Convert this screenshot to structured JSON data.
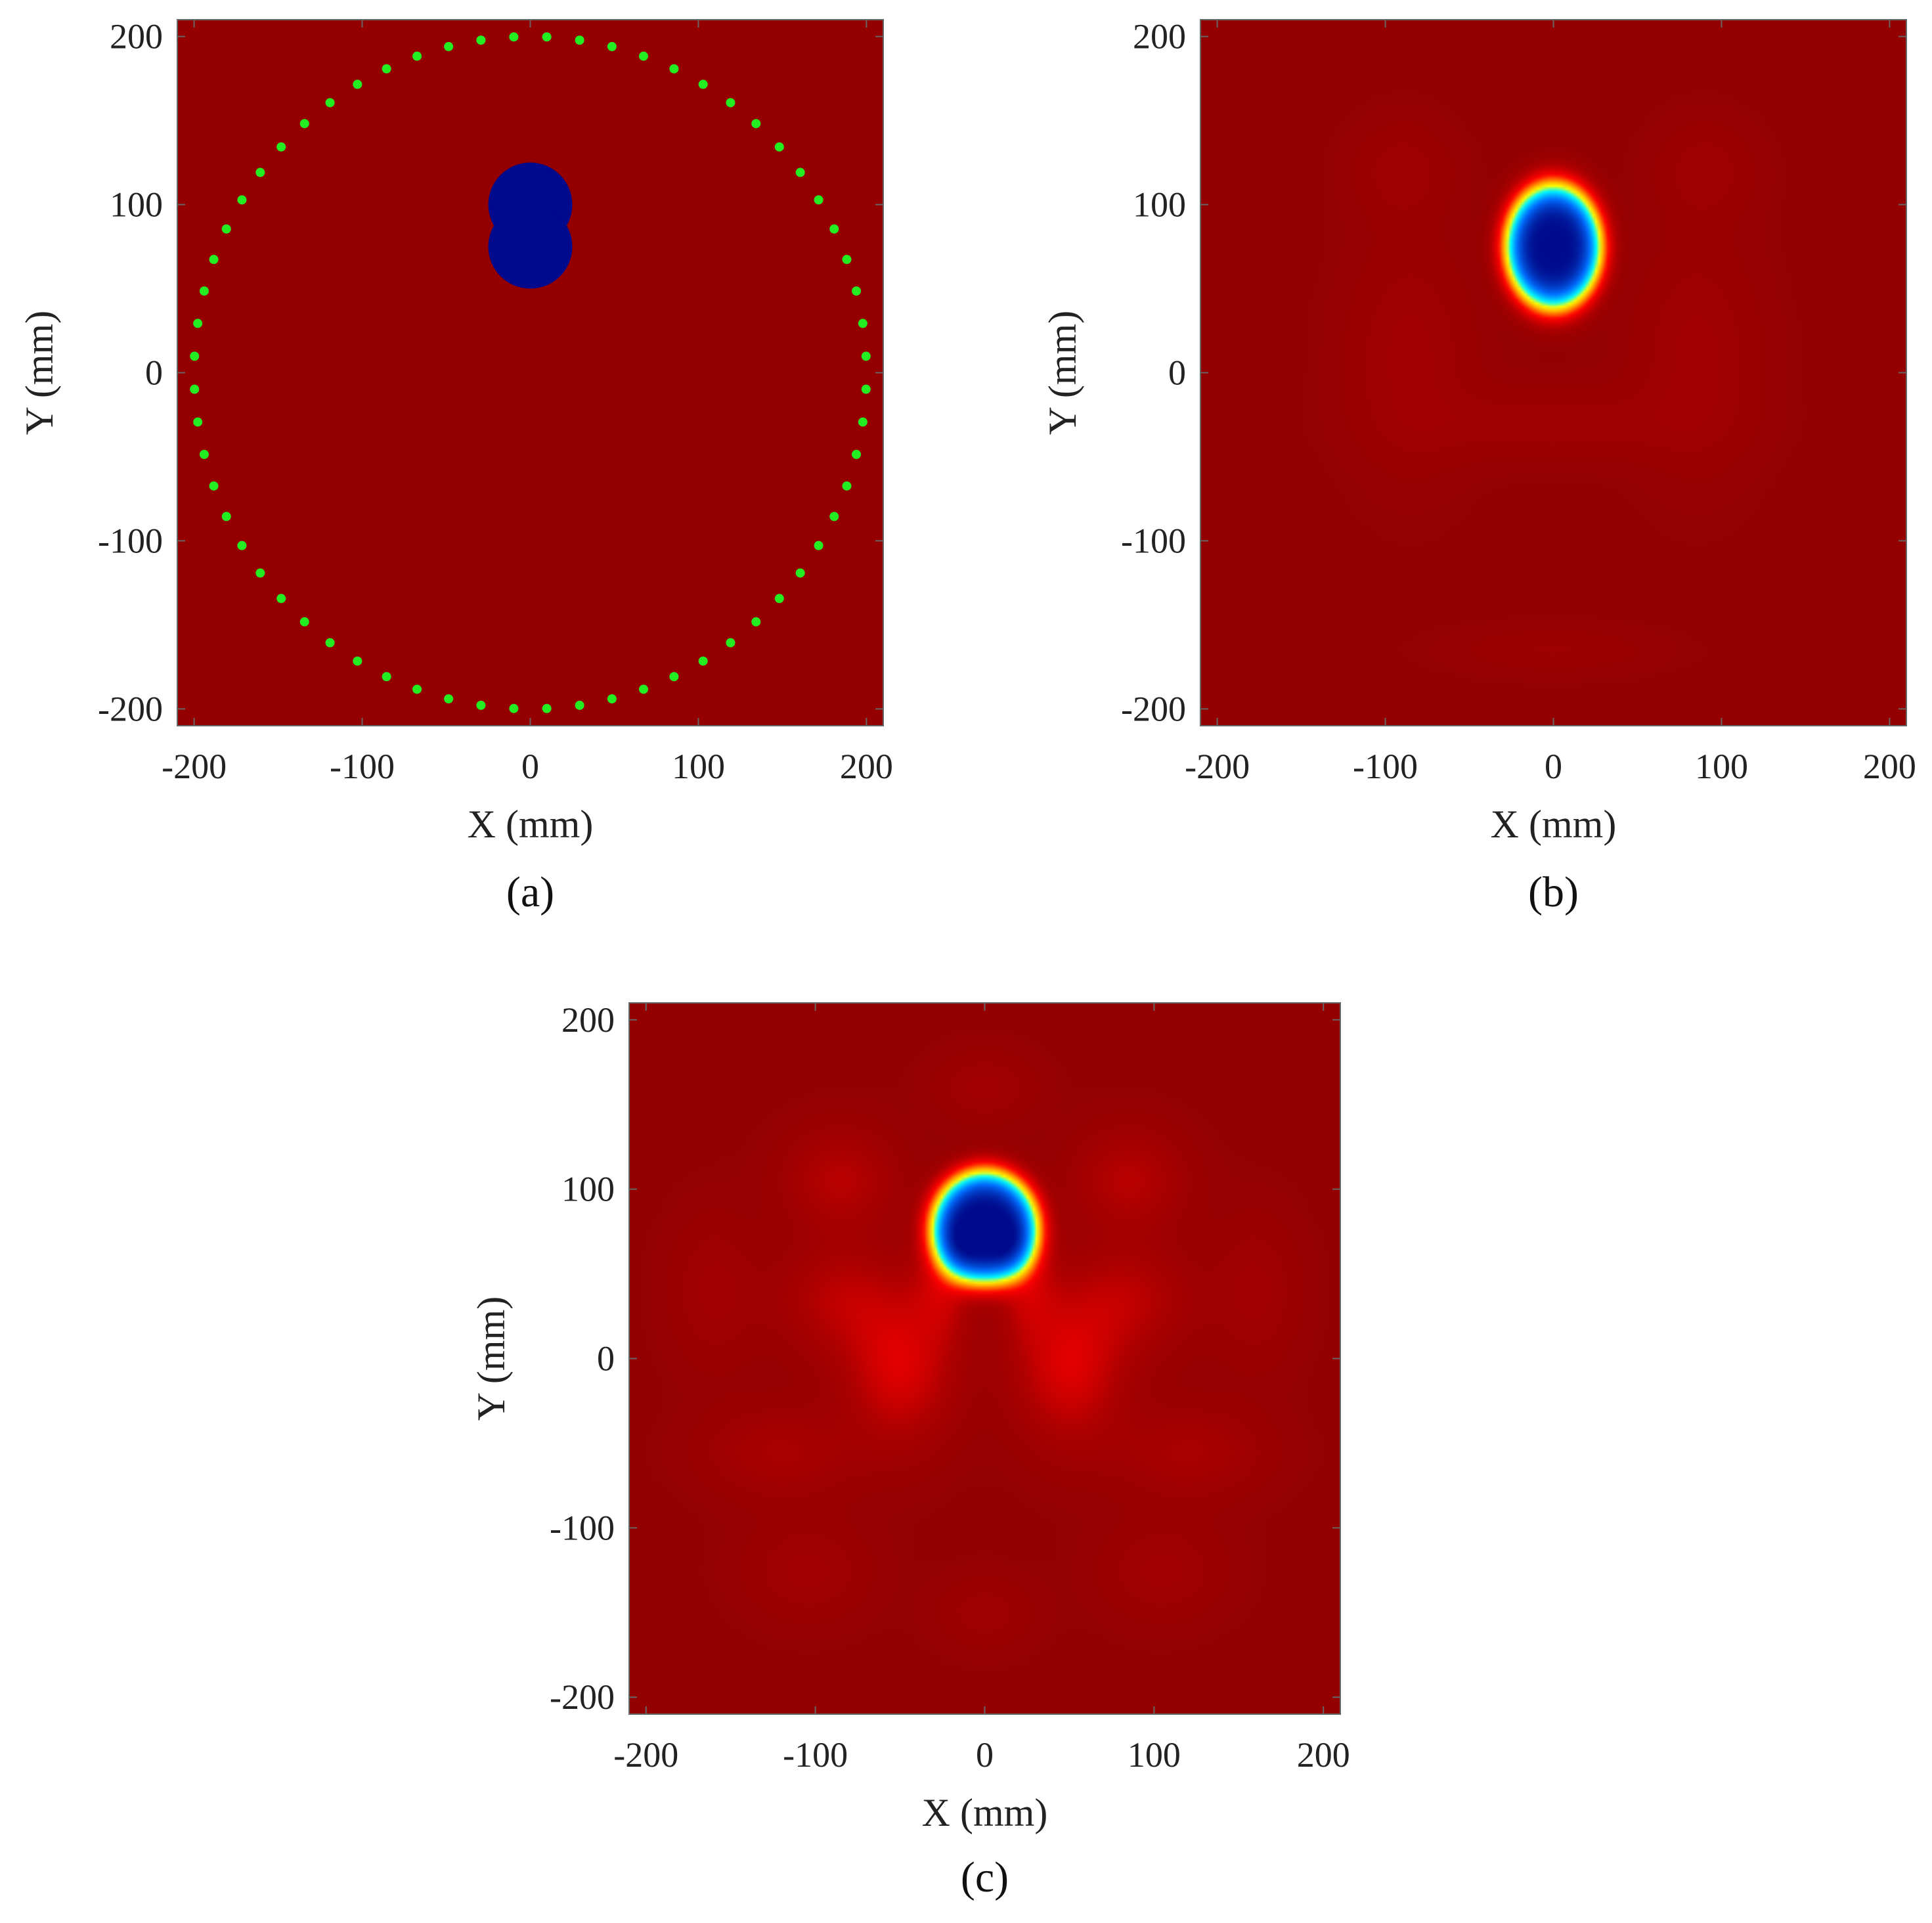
{
  "figure": {
    "colors": {
      "background": "#940000",
      "inclusion": "#000a8c",
      "antenna": "#22ee22",
      "frame": "#666666"
    }
  },
  "chart_data": [
    {
      "panel": "(a)",
      "type": "heatmap",
      "xlabel": "X (mm)",
      "ylabel": "Y (mm)",
      "xlim": [
        -210,
        210
      ],
      "ylim": [
        -210,
        210
      ],
      "xticks": [
        -200,
        -100,
        0,
        100,
        200
      ],
      "yticks": [
        -200,
        -100,
        0,
        100,
        200
      ],
      "xtick_labels": [
        "-200",
        "-100",
        "0",
        "100",
        "200"
      ],
      "ytick_labels": [
        "-200",
        "-100",
        "0",
        "100",
        "200"
      ],
      "background_value": "uniform (dark red)",
      "inclusion": {
        "shape": "two overlapping disks",
        "circles": [
          {
            "cx": 0,
            "cy": 100,
            "r": 25
          },
          {
            "cx": 0,
            "cy": 75,
            "r": 25
          }
        ],
        "color": "#000a8c"
      },
      "antennas": {
        "count": 64,
        "radius": 200,
        "start_angle_deg": 2.8125,
        "color": "#22ee22"
      }
    },
    {
      "panel": "(b)",
      "type": "heatmap",
      "xlabel": "X (mm)",
      "ylabel": "Y (mm)",
      "xlim": [
        -210,
        210
      ],
      "ylim": [
        -210,
        210
      ],
      "xticks": [
        -200,
        -100,
        0,
        100,
        200
      ],
      "yticks": [
        -200,
        -100,
        0,
        100,
        200
      ],
      "xtick_labels": [
        "-200",
        "-100",
        "0",
        "100",
        "200"
      ],
      "ytick_labels": [
        "-200",
        "-100",
        "0",
        "100",
        "200"
      ],
      "reconstruction_peak": {
        "x": 0,
        "y": 75,
        "sx": 26,
        "sy": 34
      },
      "artifacts": [
        {
          "x": -85,
          "y": 10,
          "sx": 25,
          "sy": 45,
          "amp": 0.05
        },
        {
          "x": 85,
          "y": 10,
          "sx": 25,
          "sy": 45,
          "amp": 0.05
        },
        {
          "x": 0,
          "y": -30,
          "sx": 55,
          "sy": 15,
          "amp": 0.04
        },
        {
          "x": -90,
          "y": 120,
          "sx": 20,
          "sy": 20,
          "amp": 0.04
        },
        {
          "x": 90,
          "y": 120,
          "sx": 20,
          "sy": 20,
          "amp": 0.04
        },
        {
          "x": 0,
          "y": -165,
          "sx": 40,
          "sy": 10,
          "amp": 0.03
        }
      ]
    },
    {
      "panel": "(c)",
      "type": "heatmap",
      "xlabel": "X (mm)",
      "ylabel": "Y (mm)",
      "xlim": [
        -210,
        210
      ],
      "ylim": [
        -210,
        210
      ],
      "xticks": [
        -200,
        -100,
        0,
        100,
        200
      ],
      "yticks": [
        -200,
        -100,
        0,
        100,
        200
      ],
      "xtick_labels": [
        "-200",
        "-100",
        "0",
        "100",
        "200"
      ],
      "ytick_labels": [
        "-200",
        "-100",
        "0",
        "100",
        "200"
      ],
      "reconstruction_peak": {
        "x": 0,
        "y": 78,
        "sx": 28,
        "sy": 30
      },
      "artifacts": [
        {
          "x": -85,
          "y": 105,
          "sx": 22,
          "sy": 20,
          "amp": 0.12
        },
        {
          "x": 85,
          "y": 105,
          "sx": 22,
          "sy": 20,
          "amp": 0.12
        },
        {
          "x": -85,
          "y": 35,
          "sx": 25,
          "sy": 22,
          "amp": 0.12
        },
        {
          "x": 85,
          "y": 35,
          "sx": 25,
          "sy": 22,
          "amp": 0.12
        },
        {
          "x": -50,
          "y": -5,
          "sx": 22,
          "sy": 30,
          "amp": 0.2
        },
        {
          "x": 50,
          "y": -5,
          "sx": 22,
          "sy": 30,
          "amp": 0.2
        },
        {
          "x": -25,
          "y": 45,
          "sx": 12,
          "sy": 22,
          "amp": 0.15
        },
        {
          "x": 25,
          "y": 45,
          "sx": 12,
          "sy": 22,
          "amp": 0.15
        },
        {
          "x": -120,
          "y": -55,
          "sx": 30,
          "sy": 18,
          "amp": 0.08
        },
        {
          "x": 120,
          "y": -55,
          "sx": 30,
          "sy": 18,
          "amp": 0.08
        },
        {
          "x": -160,
          "y": 40,
          "sx": 18,
          "sy": 30,
          "amp": 0.05
        },
        {
          "x": 160,
          "y": 40,
          "sx": 18,
          "sy": 30,
          "amp": 0.05
        },
        {
          "x": 0,
          "y": 160,
          "sx": 20,
          "sy": 15,
          "amp": 0.05
        },
        {
          "x": -105,
          "y": -125,
          "sx": 25,
          "sy": 20,
          "amp": 0.05
        },
        {
          "x": 105,
          "y": -125,
          "sx": 25,
          "sy": 20,
          "amp": 0.05
        },
        {
          "x": 0,
          "y": -150,
          "sx": 20,
          "sy": 15,
          "amp": 0.04
        }
      ]
    }
  ]
}
